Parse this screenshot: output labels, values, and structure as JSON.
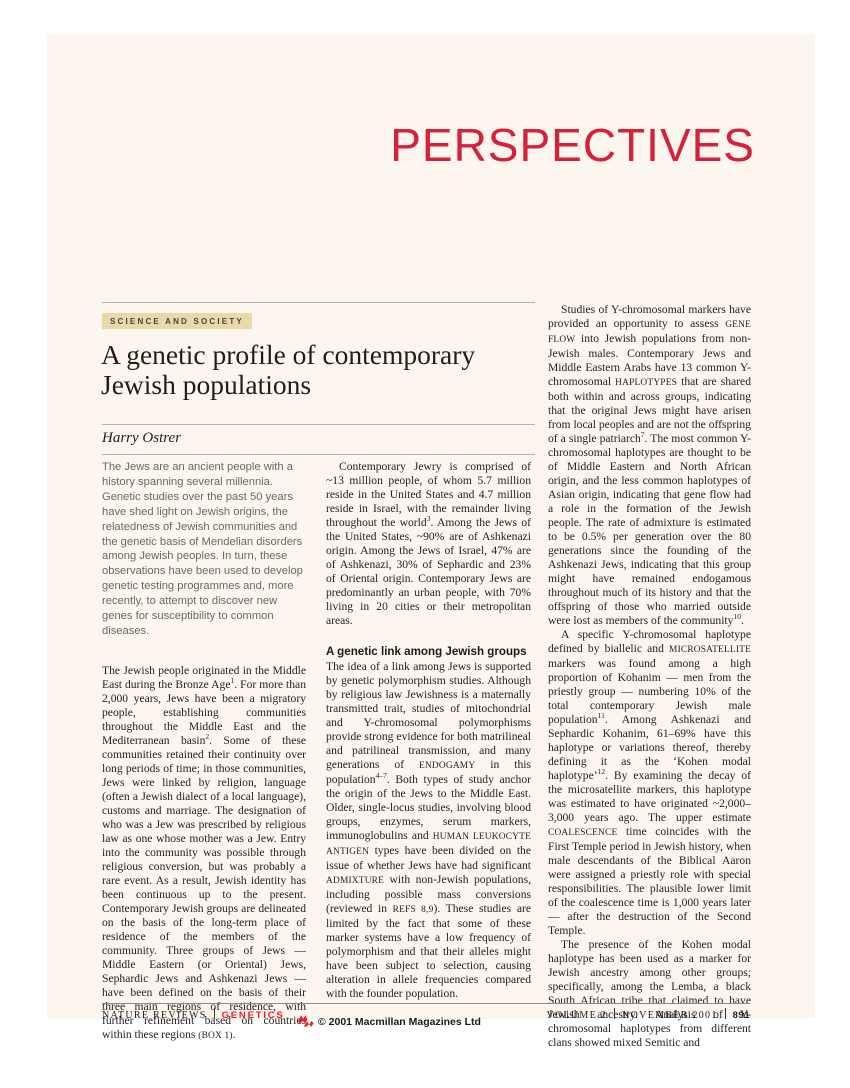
{
  "kicker": "PERSPECTIVES",
  "tag": "SCIENCE AND SOCIETY",
  "title": "A genetic profile of contemporary Jewish populations",
  "author": "Harry Ostrer",
  "abstract": "The Jews are an ancient people with a history spanning several millennia. Genetic studies over the past 50 years have shed light on Jewish origins, the relatedness of Jewish communities and the genetic basis of Mendelian disorders among Jewish peoples. In turn, these observations have been used to develop genetic testing programmes and, more recently, to attempt to discover new genes for susceptibility to common diseases.",
  "col1": {
    "p1": "The Jewish people originated in the Middle East during the Bronze Age[[sup:1]]. For more than 2,000 years, Jews have been a migratory people, establishing communities throughout the Middle East and the Mediterranean basin[[sup:2]]. Some of these communities retained their continuity over long periods of time; in those communities, Jews were linked by religion, language (often a Jewish dialect of a local language), customs and marriage. The designation of who was a Jew was prescribed by religious law as one whose mother was a Jew. Entry into the community was possible through religious conversion, but was probably a rare event. As a result, Jewish identity has been continuous up to the present. Contemporary Jewish groups are delineated on the basis of the long-term place of residence of the members of the community. Three groups of Jews — Middle Eastern (or Oriental) Jews, Sephardic Jews and Ashkenazi Jews — have been defined on the basis of their three main regions of residence, with further refinement based on countries within these regions [[sc:(BOX 1)]]."
  },
  "col2": {
    "p1": "Contemporary Jewry is comprised of ~13 million people, of whom 5.7 million reside in the United States and 4.7 million reside in Israel, with the remainder living throughout the world[[sup:3]]. Among the Jews of the United States, ~90% are of Ashkenazi origin. Among the Jews of Israel, 47% are of Ashkenazi, 30% of Sephardic and 23% of Oriental origin. Contemporary Jews are predominantly an urban people, with 70% living in 20 cities or their metropolitan areas.",
    "heading": "A genetic link among Jewish groups",
    "p2": "The idea of a link among Jews is supported by genetic polymorphism studies. Although by religious law Jewishness is a maternally transmitted trait, studies of mitochondrial and Y-chromosomal polymorphisms provide strong evidence for both matrilineal and patrilineal transmission, and many generations of [[sc:ENDOGAMY]] in this population[[sup:4–7]]. Both types of study anchor the origin of the Jews to the Middle East. Older, single-locus studies, involving blood groups, enzymes, serum markers, immunoglobulins and [[sc:HUMAN LEUKOCYTE ANTIGEN]] types have been divided on the issue of whether Jews have had significant [[sc:ADMIXTURE]] with non-Jewish populations, including possible mass conversions (reviewed in [[sc:REFS 8,9]]). These studies are limited by the fact that some of these marker systems have a low frequency of polymorphism and that their alleles might have been subject to selection, causing alteration in allele frequencies compared with the founder population."
  },
  "col3": {
    "p1": "Studies of Y-chromosomal markers have provided an opportunity to assess [[sc:GENE FLOW]] into Jewish populations from non-Jewish males. Contemporary Jews and Middle Eastern Arabs have 13 common Y-chromosomal [[sc:HAPLOTYPES]] that are shared both within and across groups, indicating that the original Jews might have arisen from local peoples and are not the offspring of a single patriarch[[sup:7]]. The most common Y-chromosomal haplotypes are thought to be of Middle Eastern and North African origin, and the less common haplotypes of Asian origin, indicating that gene flow had a role in the formation of the Jewish people. The rate of admixture is estimated to be 0.5% per generation over the 80 generations since the founding of the Ashkenazi Jews, indicating that this group might have remained endogamous throughout much of its history and that the offspring of those who married outside were lost as members of the community[[sup:10]].",
    "p2": "A specific Y-chromosomal haplotype defined by biallelic and [[sc:MICROSATELLITE]] markers was found among a high proportion of Kohanim — men from the priestly group — numbering 10% of the total contemporary Jewish male population[[sup:11]]. Among Ashkenazi and Sephardic Kohanim, 61–69% have this haplotype or variations thereof, thereby defining it as the ‘Kohen modal haplotype’[[sup:12]]. By examining the decay of the microsatellite markers, this haplotype was estimated to have originated ~2,000–3,000 years ago. The upper estimate [[sc:COALESCENCE]] time coincides with the First Temple period in Jewish history, when male descendants of the Biblical Aaron were assigned a priestly role with special responsibilities. The plausible lower limit of the coalescence time is 1,000 years later — after the destruction of the Second Temple.",
    "p3": "The presence of the Kohen modal haplotype has been used as a marker for Jewish ancestry among other groups; specifically, among the Lemba, a black South African tribe that claimed to have Jewish ancestry. Analysis of Y-chromosomal haplotypes from different clans showed mixed Semitic and"
  },
  "footer": {
    "journal": "NATURE REVIEWS",
    "section": "GENETICS",
    "volume": "VOLUME 2",
    "date": "NOVEMBER 2001",
    "page_number": "891"
  },
  "copyright": "© 2001 Macmillan Magazines Ltd",
  "colors": {
    "accent_red": "#D5213A",
    "footer_red": "#ED1C24",
    "page_bg": "#FDF6EE",
    "tag_bg": "#E8D8AA"
  }
}
